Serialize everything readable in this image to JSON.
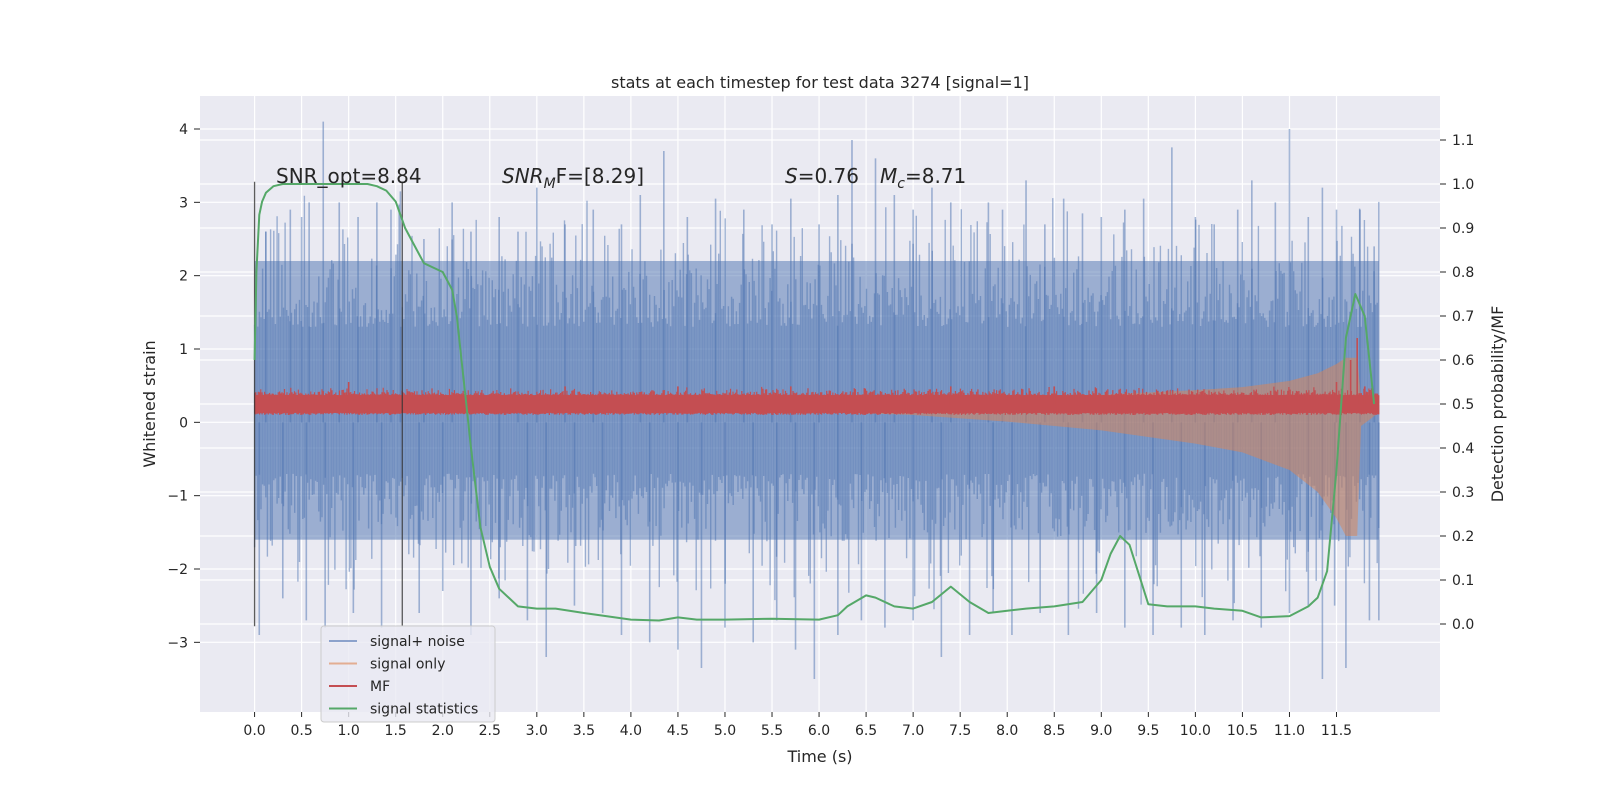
{
  "chart_data": {
    "type": "line",
    "title": "stats at each timestep for test data 3274 [signal=1]",
    "xlabel": "Time (s)",
    "ylabel_left": "Whitened strain",
    "ylabel_right": "Detection probability/MF",
    "xlim": [
      -0.58,
      12.6
    ],
    "ylim_left": [
      -3.95,
      4.45
    ],
    "ylim_right": [
      -0.2,
      1.2
    ],
    "x_ticks": [
      "0.0",
      "0.5",
      "1.0",
      "1.5",
      "2.0",
      "2.5",
      "3.0",
      "3.5",
      "4.0",
      "4.5",
      "5.0",
      "5.5",
      "6.0",
      "6.5",
      "7.0",
      "7.5",
      "8.0",
      "8.5",
      "9.0",
      "9.5",
      "10.0",
      "10.5",
      "11.0",
      "11.5"
    ],
    "y_ticks_left": [
      "4",
      "3",
      "2",
      "1",
      "0",
      "−1",
      "−2",
      "−3"
    ],
    "y_ticks_right": [
      "1.1",
      "1.0",
      "0.9",
      "0.8",
      "0.7",
      "0.6",
      "0.5",
      "0.4",
      "0.3",
      "0.2",
      "0.1",
      "0.0"
    ],
    "grid": true,
    "legend_position": "lower-left",
    "annotations": {
      "snr_opt": "SNR_opt=8.84",
      "snr_mf_name": "SNR",
      "snr_mf_sub": "M",
      "snr_mf_tail": "F=[8.29]",
      "s_name": "S",
      "s_tail": "=0.76",
      "mc_name": "M",
      "mc_sub": "c",
      "mc_tail": "=8.71"
    },
    "vlines_x": [
      0.0,
      1.57
    ],
    "series": [
      {
        "name": "signal+ noise",
        "axis": "left",
        "color": "#4c72b0",
        "alpha": 0.5,
        "x_range": [
          0.0,
          11.95
        ],
        "envelope_upper": 2.2,
        "envelope_lower": -1.6,
        "peaks": [
          [
            0.12,
            2.6
          ],
          [
            0.38,
            2.9
          ],
          [
            0.5,
            2.8
          ],
          [
            0.58,
            3.0
          ],
          [
            0.73,
            4.1
          ],
          [
            0.9,
            3.0
          ],
          [
            1.1,
            2.8
          ],
          [
            1.3,
            3.0
          ],
          [
            1.45,
            2.9
          ],
          [
            1.55,
            3.15
          ],
          [
            1.8,
            2.5
          ],
          [
            2.1,
            3.0
          ],
          [
            2.3,
            2.6
          ],
          [
            2.6,
            2.8
          ],
          [
            2.8,
            2.6
          ],
          [
            3.0,
            3.2
          ],
          [
            3.3,
            2.7
          ],
          [
            3.6,
            2.9
          ],
          [
            3.9,
            2.7
          ],
          [
            4.1,
            3.1
          ],
          [
            4.35,
            3.7
          ],
          [
            4.6,
            2.8
          ],
          [
            4.9,
            3.05
          ],
          [
            5.2,
            2.9
          ],
          [
            5.5,
            2.7
          ],
          [
            5.7,
            3.05
          ],
          [
            6.0,
            2.7
          ],
          [
            6.2,
            3.1
          ],
          [
            6.35,
            3.85
          ],
          [
            6.6,
            3.6
          ],
          [
            6.8,
            3.1
          ],
          [
            7.0,
            2.9
          ],
          [
            7.2,
            3.2
          ],
          [
            7.4,
            3.0
          ],
          [
            7.8,
            3.0
          ],
          [
            7.95,
            2.9
          ],
          [
            8.2,
            3.3
          ],
          [
            8.4,
            2.7
          ],
          [
            8.6,
            3.05
          ],
          [
            8.8,
            2.85
          ],
          [
            9.0,
            2.8
          ],
          [
            9.25,
            2.9
          ],
          [
            9.45,
            3.05
          ],
          [
            9.75,
            3.75
          ],
          [
            10.0,
            2.8
          ],
          [
            10.2,
            2.7
          ],
          [
            10.45,
            2.9
          ],
          [
            10.6,
            3.3
          ],
          [
            10.85,
            3.0
          ],
          [
            11.0,
            4.0
          ],
          [
            11.2,
            2.8
          ],
          [
            11.35,
            3.2
          ],
          [
            11.5,
            2.9
          ],
          [
            11.75,
            2.9
          ],
          [
            11.9,
            2.4
          ]
        ],
        "troughs": [
          [
            0.05,
            -2.9
          ],
          [
            0.3,
            -2.4
          ],
          [
            0.55,
            -2.7
          ],
          [
            0.75,
            -2.8
          ],
          [
            1.05,
            -2.6
          ],
          [
            1.35,
            -2.8
          ],
          [
            1.75,
            -2.6
          ],
          [
            2.0,
            -2.3
          ],
          [
            2.3,
            -2.9
          ],
          [
            2.6,
            -2.4
          ],
          [
            2.9,
            -2.7
          ],
          [
            3.1,
            -3.2
          ],
          [
            3.4,
            -2.5
          ],
          [
            3.7,
            -2.6
          ],
          [
            3.9,
            -2.9
          ],
          [
            4.2,
            -3.0
          ],
          [
            4.5,
            -3.1
          ],
          [
            4.75,
            -3.35
          ],
          [
            5.0,
            -2.8
          ],
          [
            5.3,
            -3.0
          ],
          [
            5.55,
            -2.7
          ],
          [
            5.75,
            -3.1
          ],
          [
            5.95,
            -3.5
          ],
          [
            6.2,
            -2.9
          ],
          [
            6.45,
            -2.7
          ],
          [
            6.7,
            -2.8
          ],
          [
            7.0,
            -2.7
          ],
          [
            7.3,
            -3.2
          ],
          [
            7.6,
            -2.9
          ],
          [
            7.85,
            -2.6
          ],
          [
            8.05,
            -2.9
          ],
          [
            8.35,
            -2.6
          ],
          [
            8.65,
            -2.9
          ],
          [
            8.95,
            -2.6
          ],
          [
            9.25,
            -2.8
          ],
          [
            9.55,
            -2.9
          ],
          [
            9.85,
            -2.8
          ],
          [
            10.1,
            -2.9
          ],
          [
            10.4,
            -2.7
          ],
          [
            10.7,
            -2.8
          ],
          [
            11.0,
            -2.6
          ],
          [
            11.2,
            -2.5
          ],
          [
            11.35,
            -3.5
          ],
          [
            11.48,
            -2.5
          ],
          [
            11.6,
            -3.35
          ],
          [
            11.85,
            -2.7
          ],
          [
            11.95,
            -2.7
          ]
        ]
      },
      {
        "name": "signal only",
        "axis": "right",
        "color": "#dd8452",
        "alpha": 0.5,
        "x_range": [
          0.0,
          11.95
        ],
        "envelope": [
          [
            0.0,
            0.0
          ],
          [
            5.0,
            0.01
          ],
          [
            7.0,
            0.025
          ],
          [
            8.0,
            0.04
          ],
          [
            9.0,
            0.06
          ],
          [
            10.0,
            0.09
          ],
          [
            10.5,
            0.11
          ],
          [
            11.0,
            0.15
          ],
          [
            11.3,
            0.2
          ],
          [
            11.5,
            0.26
          ],
          [
            11.6,
            0.3
          ],
          [
            11.72,
            0.3
          ],
          [
            11.76,
            0.05
          ],
          [
            11.95,
            0.02
          ]
        ]
      },
      {
        "name": "MF",
        "axis": "right",
        "color": "#c44e52",
        "alpha": 1,
        "x_range": [
          0.0,
          11.95
        ],
        "base": 0.5,
        "amplitude": 0.02,
        "spikes": [
          [
            1.0,
            0.55
          ],
          [
            3.3,
            0.54
          ],
          [
            4.5,
            0.54
          ],
          [
            5.7,
            0.54
          ],
          [
            6.5,
            0.53
          ],
          [
            7.4,
            0.54
          ],
          [
            8.5,
            0.54
          ],
          [
            9.6,
            0.53
          ],
          [
            10.8,
            0.53
          ],
          [
            11.5,
            0.55
          ],
          [
            11.65,
            0.6
          ],
          [
            11.72,
            0.65
          ],
          [
            11.8,
            0.54
          ]
        ]
      },
      {
        "name": "signal statistics",
        "axis": "right",
        "color": "#55a868",
        "alpha": 1,
        "x": [
          0.0,
          0.02,
          0.05,
          0.08,
          0.12,
          0.2,
          0.3,
          0.5,
          0.8,
          1.0,
          1.2,
          1.3,
          1.4,
          1.5,
          1.55,
          1.6,
          1.7,
          1.8,
          1.9,
          2.0,
          2.1,
          2.15,
          2.2,
          2.25,
          2.3,
          2.4,
          2.5,
          2.6,
          2.8,
          3.0,
          3.2,
          3.5,
          4.0,
          4.3,
          4.5,
          4.7,
          5.0,
          5.5,
          6.0,
          6.2,
          6.3,
          6.5,
          6.6,
          6.8,
          7.0,
          7.2,
          7.4,
          7.6,
          7.8,
          8.0,
          8.2,
          8.5,
          8.8,
          9.0,
          9.1,
          9.2,
          9.3,
          9.5,
          9.7,
          10.0,
          10.2,
          10.5,
          10.7,
          11.0,
          11.2,
          11.3,
          11.4,
          11.5,
          11.6,
          11.7,
          11.8,
          11.85,
          11.9
        ],
        "y": [
          0.6,
          0.8,
          0.93,
          0.96,
          0.98,
          0.995,
          1.0,
          1.0,
          1.0,
          1.0,
          1.0,
          0.995,
          0.985,
          0.96,
          0.93,
          0.9,
          0.86,
          0.82,
          0.81,
          0.8,
          0.76,
          0.7,
          0.6,
          0.5,
          0.4,
          0.22,
          0.13,
          0.08,
          0.04,
          0.035,
          0.035,
          0.025,
          0.01,
          0.008,
          0.015,
          0.01,
          0.01,
          0.012,
          0.01,
          0.02,
          0.04,
          0.065,
          0.06,
          0.04,
          0.035,
          0.05,
          0.085,
          0.05,
          0.025,
          0.03,
          0.035,
          0.04,
          0.05,
          0.1,
          0.16,
          0.2,
          0.18,
          0.045,
          0.04,
          0.04,
          0.035,
          0.03,
          0.015,
          0.018,
          0.04,
          0.06,
          0.12,
          0.35,
          0.65,
          0.75,
          0.7,
          0.6,
          0.5
        ]
      }
    ]
  }
}
